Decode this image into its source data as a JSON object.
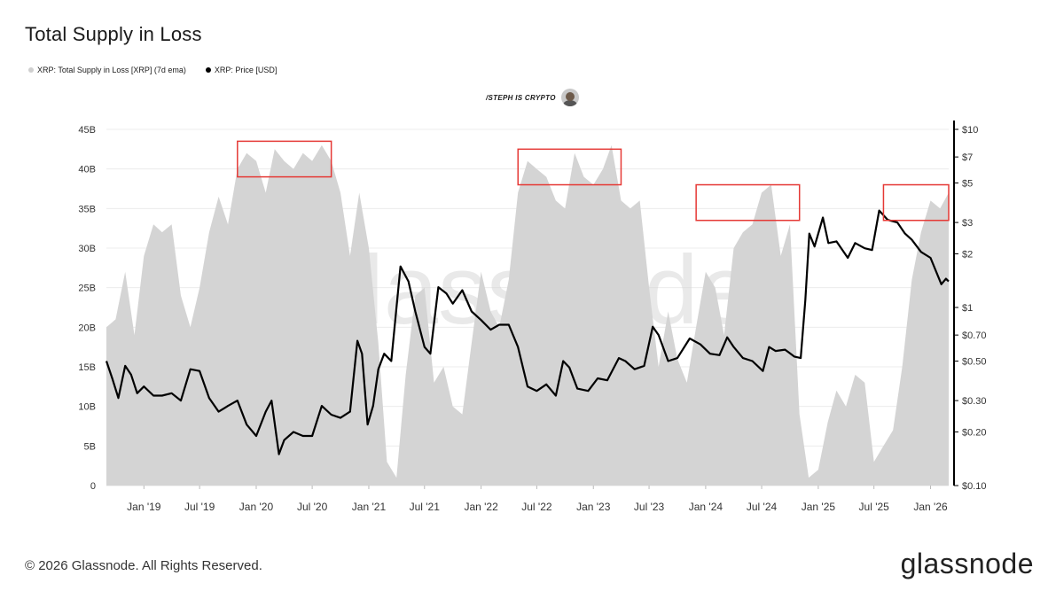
{
  "title": "Total Supply in Loss",
  "credit": "/STEPH IS CRYPTO",
  "footer": "© 2026 Glassnode. All Rights Reserved.",
  "logo": "glassnode",
  "watermark": "glassnode",
  "colors": {
    "supply": "#d4d4d4",
    "price": "#000000",
    "highlight": "#e53935",
    "grid": "#ececec"
  },
  "chart_data": {
    "type": "area",
    "x_ticks": [
      "Jan '19",
      "Jul '19",
      "Jan '20",
      "Jul '20",
      "Jan '21",
      "Jul '21",
      "Jan '22",
      "Jul '22",
      "Jan '23",
      "Jul '23",
      "Jan '24",
      "Jul '24",
      "Jan '25",
      "Jul '25",
      "Jan '26"
    ],
    "y_left_ticks": [
      "0",
      "5B",
      "10B",
      "15B",
      "20B",
      "25B",
      "30B",
      "35B",
      "40B",
      "45B"
    ],
    "y_left_lim": [
      0,
      45
    ],
    "y_right_ticks": [
      "$0.10",
      "$0.20",
      "$0.30",
      "$0.50",
      "$0.70",
      "$1",
      "$2",
      "$3",
      "$5",
      "$7",
      "$10"
    ],
    "y_right_scale": "log",
    "y_right_lim": [
      0.1,
      10
    ],
    "x_range": [
      "2018-09",
      "2026-03"
    ],
    "grid": true,
    "legend_position": "top-left",
    "series": [
      {
        "name": "XRP: Total Supply in Loss [XRP] (7d ema)",
        "axis": "left",
        "style": "area",
        "points": [
          [
            "2018-09-01",
            20
          ],
          [
            "2018-10-01",
            21
          ],
          [
            "2018-11-01",
            27
          ],
          [
            "2018-12-01",
            19
          ],
          [
            "2019-01-01",
            29
          ],
          [
            "2019-02-01",
            33
          ],
          [
            "2019-03-01",
            32
          ],
          [
            "2019-04-01",
            33
          ],
          [
            "2019-05-01",
            24
          ],
          [
            "2019-06-01",
            20
          ],
          [
            "2019-07-01",
            25
          ],
          [
            "2019-08-01",
            32
          ],
          [
            "2019-09-01",
            36.5
          ],
          [
            "2019-10-01",
            33
          ],
          [
            "2019-11-01",
            40
          ],
          [
            "2019-12-01",
            42
          ],
          [
            "2020-01-01",
            41
          ],
          [
            "2020-02-01",
            37
          ],
          [
            "2020-03-01",
            42.5
          ],
          [
            "2020-04-01",
            41
          ],
          [
            "2020-05-01",
            40
          ],
          [
            "2020-06-01",
            42
          ],
          [
            "2020-07-01",
            41
          ],
          [
            "2020-08-01",
            43
          ],
          [
            "2020-09-01",
            41
          ],
          [
            "2020-10-01",
            37
          ],
          [
            "2020-11-01",
            29
          ],
          [
            "2020-12-01",
            37
          ],
          [
            "2021-01-01",
            30
          ],
          [
            "2021-02-01",
            18
          ],
          [
            "2021-03-01",
            3
          ],
          [
            "2021-04-01",
            1
          ],
          [
            "2021-05-01",
            14
          ],
          [
            "2021-06-01",
            24
          ],
          [
            "2021-07-01",
            25
          ],
          [
            "2021-08-01",
            13
          ],
          [
            "2021-09-01",
            15
          ],
          [
            "2021-10-01",
            10
          ],
          [
            "2021-11-01",
            9
          ],
          [
            "2021-12-01",
            18
          ],
          [
            "2022-01-01",
            27
          ],
          [
            "2022-02-01",
            22
          ],
          [
            "2022-03-01",
            20
          ],
          [
            "2022-04-01",
            26
          ],
          [
            "2022-05-01",
            37
          ],
          [
            "2022-06-01",
            41
          ],
          [
            "2022-07-01",
            40
          ],
          [
            "2022-08-01",
            39
          ],
          [
            "2022-09-01",
            36
          ],
          [
            "2022-10-01",
            35
          ],
          [
            "2022-11-01",
            42
          ],
          [
            "2022-12-01",
            39
          ],
          [
            "2023-01-01",
            38
          ],
          [
            "2023-02-01",
            40
          ],
          [
            "2023-03-01",
            43
          ],
          [
            "2023-04-01",
            36
          ],
          [
            "2023-05-01",
            35
          ],
          [
            "2023-06-01",
            36
          ],
          [
            "2023-07-01",
            25
          ],
          [
            "2023-08-01",
            15
          ],
          [
            "2023-09-01",
            22
          ],
          [
            "2023-10-01",
            16
          ],
          [
            "2023-11-01",
            13
          ],
          [
            "2023-12-01",
            20
          ],
          [
            "2024-01-01",
            27
          ],
          [
            "2024-02-01",
            25
          ],
          [
            "2024-03-01",
            19
          ],
          [
            "2024-04-01",
            30
          ],
          [
            "2024-05-01",
            32
          ],
          [
            "2024-06-01",
            33
          ],
          [
            "2024-07-01",
            37
          ],
          [
            "2024-08-01",
            38
          ],
          [
            "2024-09-01",
            29
          ],
          [
            "2024-10-01",
            33
          ],
          [
            "2024-11-01",
            9
          ],
          [
            "2024-12-01",
            1
          ],
          [
            "2025-01-01",
            2
          ],
          [
            "2025-02-01",
            8
          ],
          [
            "2025-03-01",
            12
          ],
          [
            "2025-04-01",
            10
          ],
          [
            "2025-05-01",
            14
          ],
          [
            "2025-06-01",
            13
          ],
          [
            "2025-07-01",
            3
          ],
          [
            "2025-08-01",
            5
          ],
          [
            "2025-09-01",
            7
          ],
          [
            "2025-10-01",
            15
          ],
          [
            "2025-11-01",
            26
          ],
          [
            "2025-12-01",
            32
          ],
          [
            "2026-01-01",
            36
          ],
          [
            "2026-02-01",
            35
          ],
          [
            "2026-03-01",
            37
          ]
        ]
      },
      {
        "name": "XRP: Price [USD]",
        "axis": "right",
        "style": "line",
        "points": [
          [
            "2018-09-01",
            0.5
          ],
          [
            "2018-09-20",
            0.4
          ],
          [
            "2018-10-10",
            0.31
          ],
          [
            "2018-11-01",
            0.47
          ],
          [
            "2018-11-20",
            0.42
          ],
          [
            "2018-12-10",
            0.33
          ],
          [
            "2019-01-01",
            0.36
          ],
          [
            "2019-02-01",
            0.32
          ],
          [
            "2019-03-01",
            0.32
          ],
          [
            "2019-04-01",
            0.33
          ],
          [
            "2019-05-01",
            0.3
          ],
          [
            "2019-06-01",
            0.45
          ],
          [
            "2019-07-01",
            0.44
          ],
          [
            "2019-08-01",
            0.31
          ],
          [
            "2019-09-01",
            0.26
          ],
          [
            "2019-10-01",
            0.28
          ],
          [
            "2019-11-01",
            0.3
          ],
          [
            "2019-12-01",
            0.22
          ],
          [
            "2020-01-01",
            0.19
          ],
          [
            "2020-02-01",
            0.26
          ],
          [
            "2020-02-20",
            0.3
          ],
          [
            "2020-03-15",
            0.15
          ],
          [
            "2020-04-01",
            0.18
          ],
          [
            "2020-05-01",
            0.2
          ],
          [
            "2020-06-01",
            0.19
          ],
          [
            "2020-07-01",
            0.19
          ],
          [
            "2020-08-01",
            0.28
          ],
          [
            "2020-09-01",
            0.25
          ],
          [
            "2020-10-01",
            0.24
          ],
          [
            "2020-11-01",
            0.26
          ],
          [
            "2020-11-25",
            0.65
          ],
          [
            "2020-12-10",
            0.55
          ],
          [
            "2020-12-28",
            0.22
          ],
          [
            "2021-01-15",
            0.28
          ],
          [
            "2021-02-01",
            0.45
          ],
          [
            "2021-02-20",
            0.55
          ],
          [
            "2021-03-15",
            0.5
          ],
          [
            "2021-04-14",
            1.7
          ],
          [
            "2021-05-10",
            1.4
          ],
          [
            "2021-06-01",
            0.95
          ],
          [
            "2021-07-01",
            0.6
          ],
          [
            "2021-07-20",
            0.55
          ],
          [
            "2021-08-15",
            1.3
          ],
          [
            "2021-09-10",
            1.2
          ],
          [
            "2021-10-01",
            1.05
          ],
          [
            "2021-11-01",
            1.25
          ],
          [
            "2021-12-01",
            0.95
          ],
          [
            "2022-01-01",
            0.85
          ],
          [
            "2022-02-01",
            0.75
          ],
          [
            "2022-03-01",
            0.8
          ],
          [
            "2022-04-01",
            0.8
          ],
          [
            "2022-05-01",
            0.6
          ],
          [
            "2022-06-01",
            0.36
          ],
          [
            "2022-07-01",
            0.34
          ],
          [
            "2022-08-01",
            0.37
          ],
          [
            "2022-09-01",
            0.32
          ],
          [
            "2022-09-25",
            0.5
          ],
          [
            "2022-10-15",
            0.46
          ],
          [
            "2022-11-10",
            0.35
          ],
          [
            "2022-12-15",
            0.34
          ],
          [
            "2023-01-15",
            0.4
          ],
          [
            "2023-02-15",
            0.39
          ],
          [
            "2023-03-25",
            0.52
          ],
          [
            "2023-04-15",
            0.5
          ],
          [
            "2023-05-15",
            0.45
          ],
          [
            "2023-06-15",
            0.47
          ],
          [
            "2023-07-13",
            0.78
          ],
          [
            "2023-08-01",
            0.7
          ],
          [
            "2023-09-01",
            0.5
          ],
          [
            "2023-10-01",
            0.52
          ],
          [
            "2023-11-10",
            0.67
          ],
          [
            "2023-12-15",
            0.62
          ],
          [
            "2024-01-15",
            0.55
          ],
          [
            "2024-02-15",
            0.54
          ],
          [
            "2024-03-11",
            0.68
          ],
          [
            "2024-04-01",
            0.6
          ],
          [
            "2024-05-01",
            0.52
          ],
          [
            "2024-06-01",
            0.5
          ],
          [
            "2024-07-05",
            0.44
          ],
          [
            "2024-07-25",
            0.6
          ],
          [
            "2024-08-15",
            0.57
          ],
          [
            "2024-09-15",
            0.58
          ],
          [
            "2024-10-15",
            0.53
          ],
          [
            "2024-11-05",
            0.52
          ],
          [
            "2024-11-20",
            1.1
          ],
          [
            "2024-12-03",
            2.6
          ],
          [
            "2024-12-20",
            2.2
          ],
          [
            "2025-01-16",
            3.2
          ],
          [
            "2025-02-03",
            2.3
          ],
          [
            "2025-03-01",
            2.35
          ],
          [
            "2025-04-07",
            1.9
          ],
          [
            "2025-05-01",
            2.3
          ],
          [
            "2025-06-01",
            2.15
          ],
          [
            "2025-06-25",
            2.1
          ],
          [
            "2025-07-18",
            3.5
          ],
          [
            "2025-08-15",
            3.1
          ],
          [
            "2025-09-15",
            3.0
          ],
          [
            "2025-10-10",
            2.6
          ],
          [
            "2025-11-01",
            2.4
          ],
          [
            "2025-12-01",
            2.05
          ],
          [
            "2026-01-01",
            1.9
          ],
          [
            "2026-02-05",
            1.35
          ],
          [
            "2026-02-20",
            1.45
          ],
          [
            "2026-03-01",
            1.4
          ]
        ]
      }
    ],
    "highlights": [
      {
        "from": "2019-11",
        "to": "2020-09",
        "ymin": 39,
        "ymax": 43.5
      },
      {
        "from": "2022-05",
        "to": "2023-04",
        "ymin": 38,
        "ymax": 42.5
      },
      {
        "from": "2023-12",
        "to": "2024-11",
        "ymin": 33.5,
        "ymax": 38
      },
      {
        "from": "2025-08",
        "to": "2026-03",
        "ymin": 33.5,
        "ymax": 38
      }
    ]
  }
}
